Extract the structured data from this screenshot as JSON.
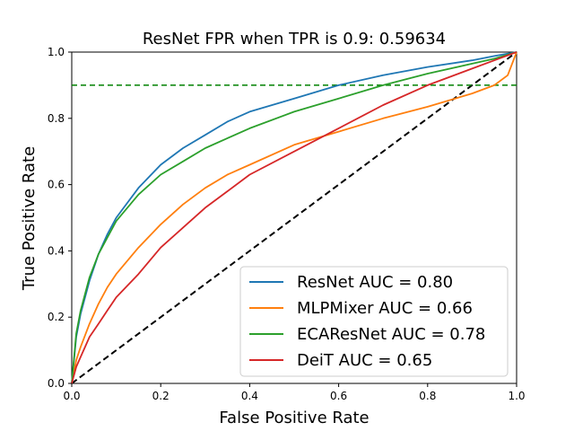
{
  "chart_data": {
    "type": "line",
    "title": "ResNet FPR when TPR is 0.9: 0.59634",
    "xlabel": "False Positive Rate",
    "ylabel": "True Positive Rate",
    "xlim": [
      0,
      1
    ],
    "ylim": [
      0,
      1
    ],
    "xticks": [
      "0.0",
      "0.2",
      "0.4",
      "0.6",
      "0.8",
      "1.0"
    ],
    "yticks": [
      "0.0",
      "0.2",
      "0.4",
      "0.6",
      "0.8",
      "1.0"
    ],
    "grid": false,
    "legend_position": "lower-right",
    "series": [
      {
        "name": "ResNet AUC = 0.80",
        "color": "#1f77b4",
        "x": [
          0,
          0.01,
          0.02,
          0.04,
          0.06,
          0.08,
          0.1,
          0.15,
          0.2,
          0.25,
          0.3,
          0.35,
          0.4,
          0.5,
          0.6,
          0.7,
          0.8,
          0.9,
          0.95,
          1.0
        ],
        "y": [
          0,
          0.14,
          0.21,
          0.31,
          0.39,
          0.45,
          0.5,
          0.59,
          0.66,
          0.71,
          0.75,
          0.79,
          0.82,
          0.86,
          0.9,
          0.93,
          0.955,
          0.975,
          0.988,
          1.0
        ]
      },
      {
        "name": "MLPMixer AUC = 0.66",
        "color": "#ff7f0e",
        "x": [
          0,
          0.01,
          0.02,
          0.04,
          0.06,
          0.08,
          0.1,
          0.15,
          0.2,
          0.25,
          0.3,
          0.35,
          0.4,
          0.5,
          0.6,
          0.7,
          0.8,
          0.9,
          0.95,
          0.98,
          1.0
        ],
        "y": [
          0,
          0.07,
          0.11,
          0.18,
          0.24,
          0.29,
          0.33,
          0.41,
          0.48,
          0.54,
          0.59,
          0.63,
          0.66,
          0.72,
          0.76,
          0.8,
          0.835,
          0.875,
          0.9,
          0.93,
          1.0
        ]
      },
      {
        "name": "ECAResNet AUC = 0.78",
        "color": "#2ca02c",
        "x": [
          0,
          0.01,
          0.02,
          0.04,
          0.06,
          0.08,
          0.1,
          0.15,
          0.2,
          0.25,
          0.3,
          0.35,
          0.4,
          0.5,
          0.6,
          0.7,
          0.8,
          0.9,
          0.95,
          1.0
        ],
        "y": [
          0,
          0.15,
          0.22,
          0.32,
          0.39,
          0.44,
          0.49,
          0.57,
          0.63,
          0.67,
          0.71,
          0.74,
          0.77,
          0.82,
          0.86,
          0.9,
          0.935,
          0.965,
          0.98,
          1.0
        ]
      },
      {
        "name": "DeiT AUC = 0.65",
        "color": "#d62728",
        "x": [
          0,
          0.01,
          0.02,
          0.04,
          0.06,
          0.08,
          0.1,
          0.15,
          0.2,
          0.25,
          0.3,
          0.35,
          0.4,
          0.5,
          0.6,
          0.7,
          0.8,
          0.9,
          0.95,
          1.0
        ],
        "y": [
          0,
          0.05,
          0.08,
          0.14,
          0.18,
          0.22,
          0.26,
          0.33,
          0.41,
          0.47,
          0.53,
          0.58,
          0.63,
          0.7,
          0.77,
          0.84,
          0.9,
          0.95,
          0.975,
          1.0
        ]
      }
    ],
    "reference_lines": [
      {
        "kind": "diagonal",
        "color": "#000000",
        "style": "dashed",
        "x": [
          0,
          1
        ],
        "y": [
          0,
          1
        ]
      },
      {
        "kind": "horizontal",
        "color": "#008000",
        "style": "dashed",
        "y": 0.9
      }
    ]
  }
}
